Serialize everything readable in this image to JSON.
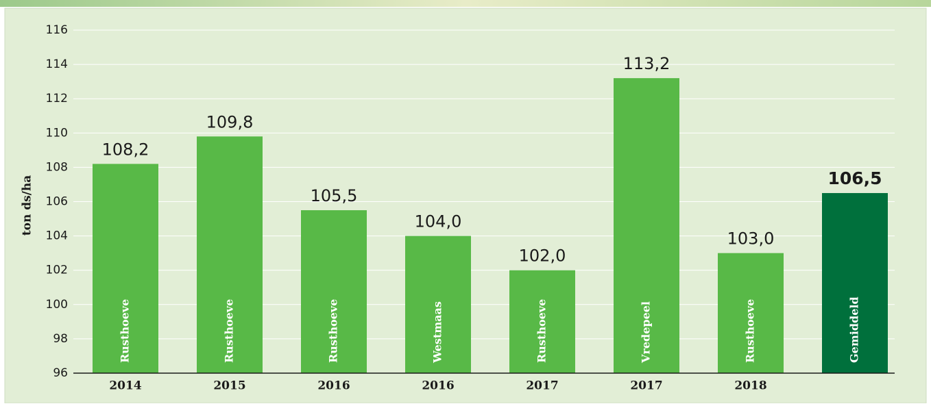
{
  "chart_data": {
    "type": "bar",
    "y_label": "ton ds/ha",
    "categories": [
      "2014",
      "2015",
      "2016",
      "2016",
      "2017",
      "2017",
      "2018",
      null
    ],
    "bar_labels": [
      "Rusthoeve",
      "Rusthoeve",
      "Rusthoeve",
      "Westmaas",
      "Rusthoeve",
      "Vredepeel",
      "Rusthoeve",
      "Gemiddeld"
    ],
    "values": [
      108.2,
      109.8,
      105.5,
      104.0,
      102.0,
      113.2,
      103.0,
      106.5
    ],
    "value_labels": [
      "108,2",
      "109,8",
      "105,5",
      "104,0",
      "102,0",
      "113,2",
      "103,0",
      "106,5"
    ],
    "colors": [
      "#58b947",
      "#58b947",
      "#58b947",
      "#58b947",
      "#58b947",
      "#58b947",
      "#58b947",
      "#00703c"
    ],
    "highlight_index": 7,
    "ylim": [
      96,
      116
    ],
    "yticks": [
      96,
      98,
      100,
      102,
      104,
      106,
      108,
      110,
      112,
      114,
      116
    ],
    "grid": true
  }
}
